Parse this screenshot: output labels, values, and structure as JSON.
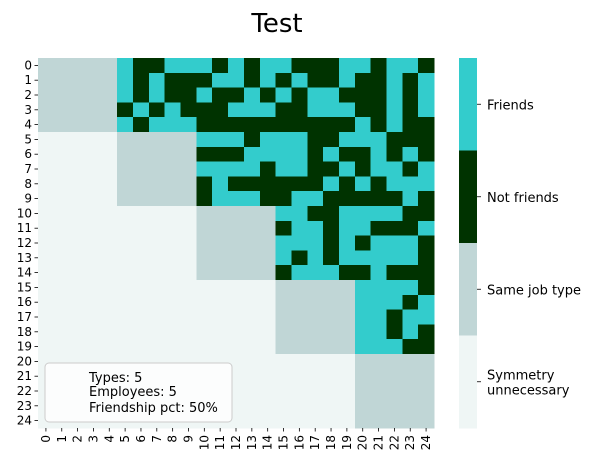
{
  "chart_data": {
    "type": "heatmap",
    "title": "Test",
    "xlabel": "",
    "ylabel": "",
    "x_ticks": [
      "0",
      "1",
      "2",
      "3",
      "4",
      "5",
      "6",
      "7",
      "8",
      "9",
      "10",
      "11",
      "12",
      "13",
      "14",
      "15",
      "16",
      "17",
      "18",
      "19",
      "20",
      "21",
      "22",
      "23",
      "24"
    ],
    "y_ticks": [
      "0",
      "1",
      "2",
      "3",
      "4",
      "5",
      "6",
      "7",
      "8",
      "9",
      "10",
      "11",
      "12",
      "13",
      "14",
      "15",
      "16",
      "17",
      "18",
      "19",
      "20",
      "21",
      "22",
      "23",
      "24"
    ],
    "categories": [
      {
        "value": 0,
        "label": "Symmetry\nunnecessary",
        "color": "#eff6f5"
      },
      {
        "value": 1,
        "label": "Same job type",
        "color": "#c0d6d6"
      },
      {
        "value": 2,
        "label": "Not friends",
        "color": "#003300"
      },
      {
        "value": 3,
        "label": "Friends",
        "color": "#33cccc"
      }
    ],
    "grid": false,
    "legend_position": "right (colorbar)",
    "matrix": [
      [
        1,
        1,
        1,
        1,
        1,
        3,
        2,
        2,
        3,
        3,
        3,
        2,
        3,
        2,
        3,
        3,
        2,
        2,
        2,
        3,
        3,
        2,
        3,
        3,
        2
      ],
      [
        1,
        1,
        1,
        1,
        1,
        3,
        2,
        3,
        2,
        2,
        2,
        3,
        3,
        2,
        3,
        2,
        3,
        2,
        2,
        3,
        2,
        2,
        3,
        2,
        3
      ],
      [
        1,
        1,
        1,
        1,
        1,
        3,
        2,
        3,
        2,
        2,
        3,
        2,
        2,
        3,
        2,
        3,
        2,
        3,
        3,
        2,
        2,
        2,
        3,
        2,
        3
      ],
      [
        1,
        1,
        1,
        1,
        1,
        2,
        3,
        2,
        3,
        2,
        2,
        2,
        3,
        3,
        3,
        2,
        2,
        3,
        3,
        3,
        2,
        2,
        3,
        2,
        3
      ],
      [
        1,
        1,
        1,
        1,
        1,
        3,
        2,
        3,
        3,
        3,
        2,
        2,
        2,
        2,
        2,
        2,
        2,
        2,
        2,
        2,
        3,
        2,
        3,
        2,
        2
      ],
      [
        0,
        0,
        0,
        0,
        0,
        1,
        1,
        1,
        1,
        1,
        3,
        3,
        3,
        2,
        3,
        3,
        3,
        2,
        2,
        3,
        3,
        3,
        2,
        2,
        2
      ],
      [
        0,
        0,
        0,
        0,
        0,
        1,
        1,
        1,
        1,
        1,
        2,
        2,
        2,
        3,
        3,
        3,
        3,
        2,
        3,
        2,
        2,
        3,
        2,
        3,
        2
      ],
      [
        0,
        0,
        0,
        0,
        0,
        1,
        1,
        1,
        1,
        1,
        3,
        3,
        3,
        3,
        2,
        3,
        3,
        2,
        2,
        3,
        2,
        3,
        3,
        2,
        3
      ],
      [
        0,
        0,
        0,
        0,
        0,
        1,
        1,
        1,
        1,
        1,
        2,
        3,
        2,
        2,
        2,
        2,
        2,
        2,
        3,
        2,
        3,
        2,
        3,
        3,
        3
      ],
      [
        0,
        0,
        0,
        0,
        0,
        1,
        1,
        1,
        1,
        1,
        2,
        3,
        3,
        3,
        2,
        2,
        3,
        3,
        2,
        2,
        2,
        2,
        2,
        3,
        2
      ],
      [
        0,
        0,
        0,
        0,
        0,
        0,
        0,
        0,
        0,
        0,
        1,
        1,
        1,
        1,
        1,
        3,
        3,
        2,
        2,
        3,
        3,
        3,
        3,
        2,
        2
      ],
      [
        0,
        0,
        0,
        0,
        0,
        0,
        0,
        0,
        0,
        0,
        1,
        1,
        1,
        1,
        1,
        2,
        3,
        3,
        2,
        3,
        3,
        2,
        2,
        2,
        3
      ],
      [
        0,
        0,
        0,
        0,
        0,
        0,
        0,
        0,
        0,
        0,
        1,
        1,
        1,
        1,
        1,
        3,
        3,
        3,
        2,
        3,
        2,
        3,
        3,
        3,
        2
      ],
      [
        0,
        0,
        0,
        0,
        0,
        0,
        0,
        0,
        0,
        0,
        1,
        1,
        1,
        1,
        1,
        3,
        2,
        3,
        2,
        3,
        3,
        3,
        3,
        3,
        2
      ],
      [
        0,
        0,
        0,
        0,
        0,
        0,
        0,
        0,
        0,
        0,
        1,
        1,
        1,
        1,
        1,
        2,
        3,
        3,
        3,
        2,
        2,
        3,
        2,
        2,
        2
      ],
      [
        0,
        0,
        0,
        0,
        0,
        0,
        0,
        0,
        0,
        0,
        0,
        0,
        0,
        0,
        0,
        1,
        1,
        1,
        1,
        1,
        3,
        3,
        3,
        3,
        2
      ],
      [
        0,
        0,
        0,
        0,
        0,
        0,
        0,
        0,
        0,
        0,
        0,
        0,
        0,
        0,
        0,
        1,
        1,
        1,
        1,
        1,
        3,
        3,
        3,
        2,
        3
      ],
      [
        0,
        0,
        0,
        0,
        0,
        0,
        0,
        0,
        0,
        0,
        0,
        0,
        0,
        0,
        0,
        1,
        1,
        1,
        1,
        1,
        3,
        3,
        2,
        3,
        3
      ],
      [
        0,
        0,
        0,
        0,
        0,
        0,
        0,
        0,
        0,
        0,
        0,
        0,
        0,
        0,
        0,
        1,
        1,
        1,
        1,
        1,
        3,
        3,
        2,
        3,
        2
      ],
      [
        0,
        0,
        0,
        0,
        0,
        0,
        0,
        0,
        0,
        0,
        0,
        0,
        0,
        0,
        0,
        1,
        1,
        1,
        1,
        1,
        3,
        3,
        3,
        2,
        2
      ],
      [
        0,
        0,
        0,
        0,
        0,
        0,
        0,
        0,
        0,
        0,
        0,
        0,
        0,
        0,
        0,
        0,
        0,
        0,
        0,
        0,
        1,
        1,
        1,
        1,
        1
      ],
      [
        0,
        0,
        0,
        0,
        0,
        0,
        0,
        0,
        0,
        0,
        0,
        0,
        0,
        0,
        0,
        0,
        0,
        0,
        0,
        0,
        1,
        1,
        1,
        1,
        1
      ],
      [
        0,
        0,
        0,
        0,
        0,
        0,
        0,
        0,
        0,
        0,
        0,
        0,
        0,
        0,
        0,
        0,
        0,
        0,
        0,
        0,
        1,
        1,
        1,
        1,
        1
      ],
      [
        0,
        0,
        0,
        0,
        0,
        0,
        0,
        0,
        0,
        0,
        0,
        0,
        0,
        0,
        0,
        0,
        0,
        0,
        0,
        0,
        1,
        1,
        1,
        1,
        1
      ],
      [
        0,
        0,
        0,
        0,
        0,
        0,
        0,
        0,
        0,
        0,
        0,
        0,
        0,
        0,
        0,
        0,
        0,
        0,
        0,
        0,
        1,
        1,
        1,
        1,
        1
      ]
    ],
    "annotation": {
      "lines": [
        "Types: 5",
        "Employees: 5",
        "Friendship pct: 50%"
      ]
    }
  }
}
